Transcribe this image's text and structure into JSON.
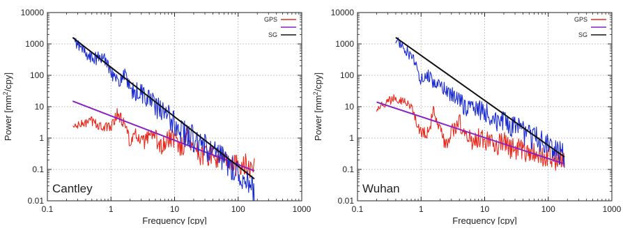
{
  "chart_data": [
    {
      "type": "line",
      "panel_label": "Cantley",
      "xlabel": "Frequency [cpy]",
      "ylabel_base": "Power [mm",
      "ylabel_sup": "2",
      "ylabel_end": "/cpy]",
      "x_scale": "log",
      "y_scale": "log",
      "xlim": [
        0.1,
        1000
      ],
      "ylim": [
        0.01,
        10000
      ],
      "x_ticks": [
        0.1,
        1,
        10,
        100,
        1000
      ],
      "x_tick_labels": [
        "0.1",
        "1",
        "10",
        "100",
        "1000"
      ],
      "y_ticks": [
        0.01,
        0.1,
        1,
        10,
        100,
        1000,
        10000
      ],
      "y_tick_labels": [
        "0.01",
        "0.1",
        "1",
        "10",
        "100",
        "1000",
        "10000"
      ],
      "grid": true,
      "legend_position": "top-right",
      "legend": [
        {
          "label": "GPS",
          "color": "#e8291c"
        },
        {
          "label": "",
          "color": "#8a1fc4"
        },
        {
          "label": "SG",
          "color": "#111111"
        }
      ],
      "series": [
        {
          "name": "GPS",
          "color": "#e8291c",
          "style": "noisy",
          "x": [
            0.25,
            0.5,
            0.8,
            1.0,
            1.25,
            1.6,
            2.0,
            2.5,
            3.2,
            4.0,
            5.0,
            6.3,
            8.0,
            10,
            13,
            16,
            20,
            25,
            32,
            40,
            50,
            63,
            80,
            100,
            130,
            160,
            180
          ],
          "y": [
            2.2,
            3.5,
            2.0,
            2.5,
            6.0,
            3.0,
            0.8,
            1.2,
            0.7,
            1.0,
            1.0,
            0.5,
            0.9,
            1.0,
            0.5,
            1.2,
            0.6,
            0.3,
            0.3,
            0.25,
            0.2,
            0.18,
            0.15,
            0.12,
            0.15,
            0.1,
            0.12
          ],
          "noise": 0.35,
          "samples_per_decade": 100
        },
        {
          "name": "",
          "color": "#8a1fc4",
          "style": "straight",
          "x": [
            0.25,
            180
          ],
          "y": [
            15,
            0.09
          ]
        },
        {
          "name": "",
          "color": "#1a2bd1",
          "style": "noisy",
          "x": [
            0.25,
            0.5,
            0.8,
            1.0,
            1.25,
            1.6,
            2.0,
            3.0,
            4.0,
            5.0,
            7.0,
            10,
            15,
            20,
            30,
            50,
            80,
            100,
            130,
            160,
            180
          ],
          "y": [
            1400,
            330,
            350,
            160,
            55,
            110,
            30,
            28,
            18,
            10,
            6,
            3,
            1.3,
            0.9,
            0.5,
            0.25,
            0.12,
            0.08,
            0.05,
            0.03,
            0.02
          ],
          "noise": 0.45,
          "samples_per_decade": 100
        },
        {
          "name": "SG",
          "color": "#111111",
          "style": "straight",
          "x": [
            0.25,
            180
          ],
          "y": [
            1600,
            0.05
          ]
        }
      ]
    },
    {
      "type": "line",
      "panel_label": "Wuhan",
      "xlabel": "Frequency [cpy]",
      "ylabel_base": "Power [mm",
      "ylabel_sup": "2",
      "ylabel_end": "/cpy]",
      "x_scale": "log",
      "y_scale": "log",
      "xlim": [
        0.1,
        1000
      ],
      "ylim": [
        0.01,
        10000
      ],
      "x_ticks": [
        0.1,
        1,
        10,
        100,
        1000
      ],
      "x_tick_labels": [
        "0.1",
        "1",
        "10",
        "100",
        "1000"
      ],
      "y_ticks": [
        0.01,
        0.1,
        1,
        10,
        100,
        1000,
        10000
      ],
      "y_tick_labels": [
        "0.01",
        "0.1",
        "1",
        "10",
        "100",
        "1000",
        "10000"
      ],
      "grid": true,
      "legend_position": "top-right",
      "legend": [
        {
          "label": "GPS",
          "color": "#e8291c"
        },
        {
          "label": "",
          "color": "#8a1fc4"
        },
        {
          "label": "SG",
          "color": "#111111"
        }
      ],
      "series": [
        {
          "name": "GPS",
          "color": "#e8291c",
          "style": "noisy",
          "x": [
            0.2,
            0.4,
            0.6,
            0.8,
            1.0,
            1.3,
            1.6,
            2.0,
            2.5,
            3.2,
            4.0,
            5.0,
            6.3,
            8.0,
            10,
            13,
            16,
            20,
            25,
            32,
            40,
            50,
            63,
            80,
            100,
            130,
            160,
            180
          ],
          "y": [
            9,
            20,
            14,
            5,
            1.3,
            1.5,
            8,
            1.5,
            0.6,
            2.0,
            3.5,
            1.2,
            0.8,
            1.0,
            0.8,
            0.7,
            0.6,
            0.8,
            0.5,
            0.45,
            0.4,
            0.35,
            0.3,
            0.28,
            0.25,
            0.2,
            0.2,
            0.15
          ],
          "noise": 0.35,
          "samples_per_decade": 100
        },
        {
          "name": "",
          "color": "#8a1fc4",
          "style": "straight",
          "x": [
            0.2,
            180
          ],
          "y": [
            14,
            0.15
          ]
        },
        {
          "name": "",
          "color": "#1a2bd1",
          "style": "noisy",
          "x": [
            0.4,
            0.6,
            0.8,
            1.0,
            1.3,
            1.6,
            2.0,
            3.0,
            4.0,
            5.0,
            7.0,
            10,
            15,
            20,
            30,
            50,
            80,
            100,
            130,
            160,
            180
          ],
          "y": [
            1400,
            600,
            250,
            70,
            100,
            60,
            40,
            25,
            15,
            10,
            9,
            7,
            4,
            3,
            2,
            1.2,
            0.8,
            0.6,
            0.4,
            0.3,
            0.25
          ],
          "noise": 0.4,
          "samples_per_decade": 100
        },
        {
          "name": "SG",
          "color": "#111111",
          "style": "straight",
          "x": [
            0.4,
            180
          ],
          "y": [
            1600,
            0.25
          ]
        }
      ]
    }
  ]
}
